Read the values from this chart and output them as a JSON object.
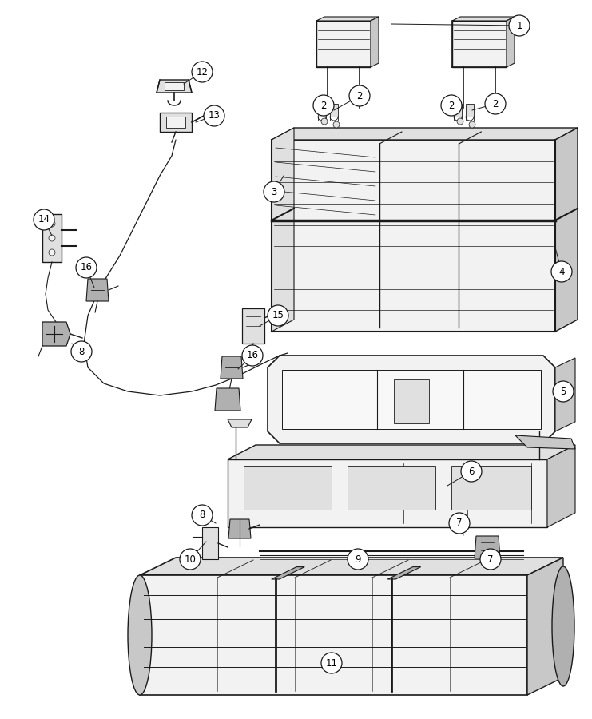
{
  "background_color": "#ffffff",
  "figsize": [
    7.41,
    9.0
  ],
  "dpi": 100,
  "line_color": "#1a1a1a",
  "fill_light": "#f2f2f2",
  "fill_mid": "#e0e0e0",
  "fill_dark": "#c8c8c8",
  "fill_darker": "#b0b0b0"
}
